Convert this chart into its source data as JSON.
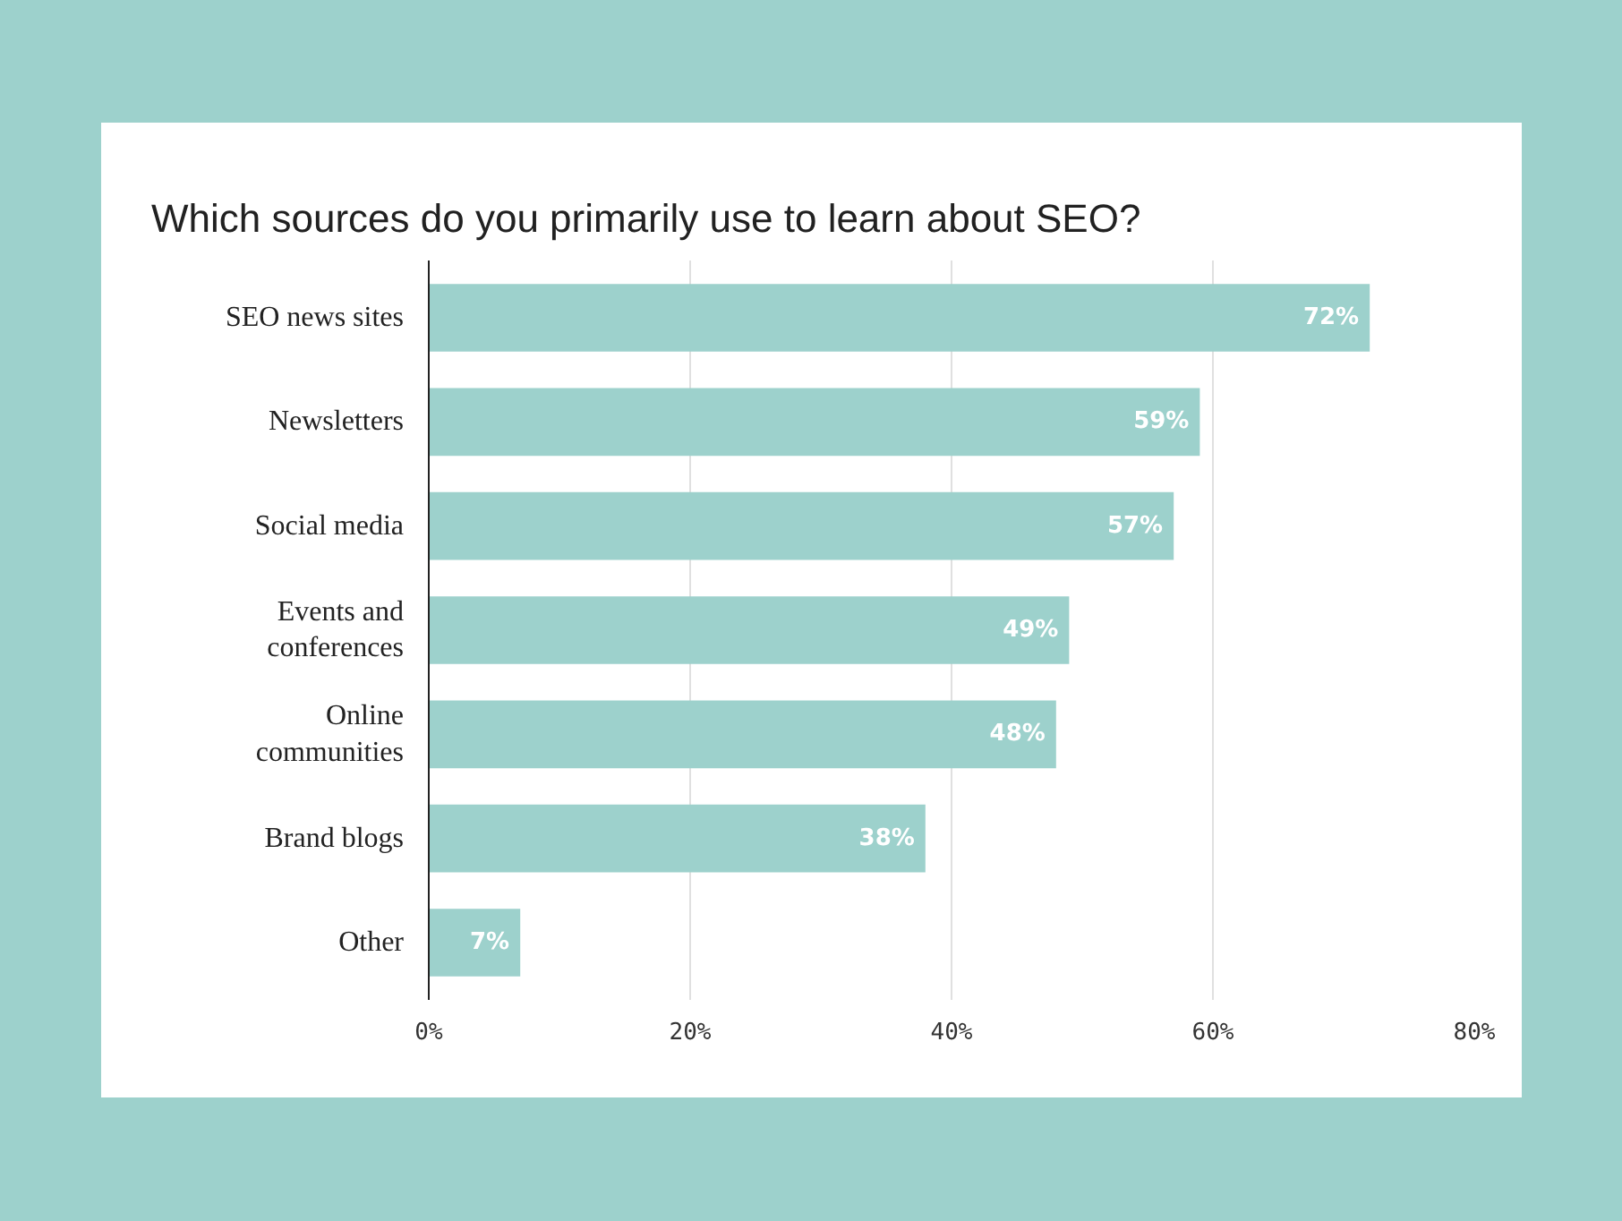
{
  "chart_data": {
    "type": "bar",
    "orientation": "horizontal",
    "title": "Which sources do you primarily use to learn about SEO?",
    "categories": [
      "SEO news sites",
      "Newsletters",
      "Social media",
      "Events and conferences",
      "Online communities",
      "Brand blogs",
      "Other"
    ],
    "values": [
      72,
      59,
      57,
      49,
      48,
      38,
      7
    ],
    "value_labels": [
      "72%",
      "59%",
      "57%",
      "49%",
      "48%",
      "38%",
      "7%"
    ],
    "color": "#9dd1cc",
    "xlim": [
      0,
      80
    ],
    "xticks": [
      {
        "value": 0,
        "label": "0%"
      },
      {
        "value": 20,
        "label": "20%"
      },
      {
        "value": 40,
        "label": "40%"
      },
      {
        "value": 60,
        "label": "60%"
      },
      {
        "value": 80,
        "label": "80%"
      }
    ],
    "grid": "x"
  }
}
